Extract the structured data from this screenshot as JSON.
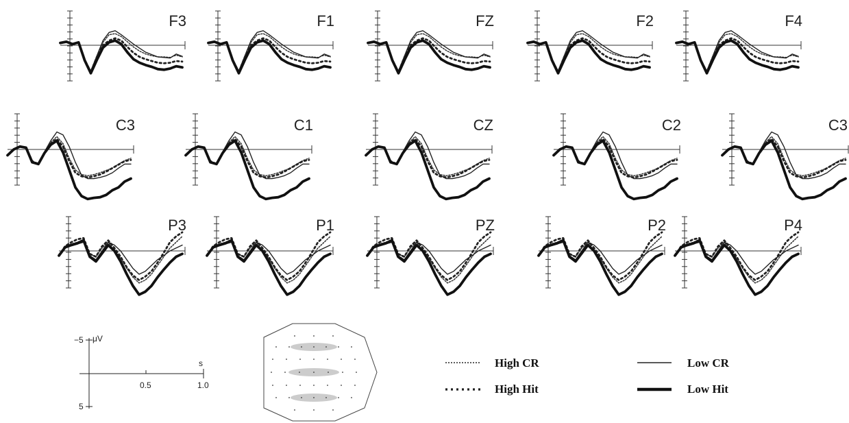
{
  "chart_data": {
    "type": "line",
    "title": "",
    "grid": false,
    "x_range_s": [
      0,
      1.0
    ],
    "y_range_uV": [
      -5,
      5
    ],
    "y_axis_note": "negative plotted upward",
    "series": [
      {
        "name": "High CR",
        "style": "dotted-thin"
      },
      {
        "name": "High Hit",
        "style": "dotted-thick"
      },
      {
        "name": "Low CR",
        "style": "solid-thin"
      },
      {
        "name": "Low Hit",
        "style": "solid-thick"
      }
    ],
    "panels": [
      {
        "label": "F3",
        "group": "frontal"
      },
      {
        "label": "F1",
        "group": "frontal"
      },
      {
        "label": "FZ",
        "group": "frontal"
      },
      {
        "label": "F2",
        "group": "frontal"
      },
      {
        "label": "F4",
        "group": "frontal"
      },
      {
        "label": "C3",
        "group": "central"
      },
      {
        "label": "C1",
        "group": "central"
      },
      {
        "label": "CZ",
        "group": "central"
      },
      {
        "label": "C2",
        "group": "central"
      },
      {
        "label": "C3",
        "group": "central"
      },
      {
        "label": "P3",
        "group": "parietal"
      },
      {
        "label": "P1",
        "group": "parietal"
      },
      {
        "label": "PZ",
        "group": "parietal"
      },
      {
        "label": "P2",
        "group": "parietal"
      },
      {
        "label": "P4",
        "group": "parietal"
      }
    ],
    "scale_key": {
      "y_top_label": "−5",
      "y_unit": "μV",
      "y_bottom_label": "5",
      "x_unit": "s",
      "x_mid_label": "0.5",
      "x_end_label": "1.0"
    },
    "waveforms_uV": {
      "frontal": {
        "x_s": [
          0,
          0.05,
          0.1,
          0.15,
          0.2,
          0.25,
          0.3,
          0.35,
          0.4,
          0.45,
          0.5,
          0.55,
          0.6,
          0.65,
          0.7,
          0.75,
          0.8,
          0.85,
          0.9,
          0.95,
          1.0
        ],
        "High CR": [
          -0.4,
          -0.6,
          -0.2,
          -0.5,
          2.5,
          4.5,
          2.0,
          -0.5,
          -1.8,
          -2.0,
          -1.5,
          -0.6,
          0.3,
          1.0,
          1.5,
          1.8,
          2.0,
          2.0,
          2.1,
          1.7,
          2.0
        ],
        "High Hit": [
          -0.4,
          -0.6,
          -0.2,
          -0.5,
          2.5,
          4.6,
          2.0,
          0.0,
          -0.8,
          -1.2,
          -0.8,
          0.3,
          1.3,
          2.0,
          2.4,
          2.7,
          3.0,
          3.1,
          3.0,
          2.7,
          2.8
        ],
        "Low CR": [
          -0.4,
          -0.6,
          -0.2,
          -0.5,
          2.5,
          4.4,
          1.8,
          -0.8,
          -2.2,
          -2.5,
          -1.8,
          -1.0,
          -0.2,
          0.5,
          1.2,
          1.6,
          2.0,
          2.1,
          2.2,
          1.5,
          1.9
        ],
        "Low Hit": [
          -0.4,
          -0.6,
          -0.2,
          -0.5,
          2.6,
          4.8,
          2.5,
          0.4,
          -0.5,
          -0.8,
          -0.2,
          1.2,
          2.4,
          3.0,
          3.4,
          3.7,
          4.1,
          4.2,
          4.0,
          3.6,
          3.8
        ]
      },
      "central": {
        "x_s": [
          0,
          0.05,
          0.1,
          0.15,
          0.2,
          0.25,
          0.3,
          0.35,
          0.4,
          0.45,
          0.5,
          0.55,
          0.6,
          0.65,
          0.7,
          0.75,
          0.8,
          0.85,
          0.9,
          0.95,
          1.0
        ],
        "High CR": [
          1.0,
          0.0,
          -0.5,
          -0.3,
          2.0,
          2.5,
          0.5,
          -1.2,
          -2.2,
          -1.0,
          1.5,
          3.5,
          4.3,
          4.5,
          4.3,
          4.0,
          3.6,
          3.2,
          2.5,
          1.9,
          1.5
        ],
        "High Hit": [
          1.0,
          0.0,
          -0.5,
          -0.3,
          2.0,
          2.5,
          0.5,
          -1.0,
          -1.8,
          -0.5,
          2.0,
          4.0,
          4.6,
          4.8,
          4.6,
          4.3,
          3.8,
          3.2,
          2.6,
          2.0,
          1.8
        ],
        "Low CR": [
          1.0,
          0.0,
          -0.5,
          -0.3,
          2.0,
          2.5,
          0.4,
          -1.5,
          -3.0,
          -2.5,
          -0.5,
          2.2,
          4.4,
          5.0,
          5.0,
          4.8,
          4.5,
          4.0,
          3.2,
          2.5,
          2.5
        ],
        "Low Hit": [
          1.0,
          0.0,
          -0.5,
          -0.3,
          2.2,
          2.5,
          0.6,
          -0.8,
          -1.5,
          0.5,
          3.5,
          6.5,
          8.0,
          8.5,
          8.3,
          8.2,
          7.8,
          7.0,
          6.5,
          5.5,
          5.0
        ]
      },
      "parietal": {
        "x_s": [
          0,
          0.05,
          0.1,
          0.15,
          0.2,
          0.25,
          0.3,
          0.35,
          0.4,
          0.45,
          0.5,
          0.55,
          0.6,
          0.65,
          0.7,
          0.75,
          0.8,
          0.85,
          0.9,
          0.95,
          1.0
        ],
        "High CR": [
          0.8,
          -0.8,
          -1.2,
          -1.5,
          -2.0,
          0.5,
          1.0,
          -0.5,
          -1.5,
          0.0,
          1.2,
          3.0,
          4.5,
          5.5,
          5.0,
          4.0,
          2.5,
          1.0,
          -0.5,
          -1.5,
          -2.5
        ],
        "High Hit": [
          0.8,
          -0.8,
          -1.5,
          -2.0,
          -2.2,
          0.5,
          1.0,
          -0.8,
          -1.8,
          -0.5,
          1.0,
          2.8,
          4.2,
          5.0,
          4.4,
          3.5,
          2.0,
          0.3,
          -1.5,
          -2.5,
          -3.2
        ],
        "Low CR": [
          0.8,
          -0.6,
          -1.0,
          -1.2,
          -1.5,
          0.8,
          1.5,
          0.0,
          -1.5,
          -1.0,
          0.0,
          1.5,
          3.0,
          4.0,
          3.5,
          2.5,
          1.5,
          0.8,
          0.0,
          -0.5,
          -1.0
        ],
        "Low Hit": [
          0.8,
          -0.6,
          -1.0,
          -1.3,
          -1.8,
          1.0,
          1.8,
          0.4,
          -1.0,
          0.0,
          1.8,
          4.0,
          6.0,
          7.5,
          7.0,
          6.0,
          4.5,
          3.2,
          2.0,
          1.0,
          0.5
        ]
      }
    }
  },
  "legend": {
    "high_cr": "High CR",
    "high_hit": "High Hit",
    "low_cr": "Low CR",
    "low_hit": "Low Hit"
  }
}
